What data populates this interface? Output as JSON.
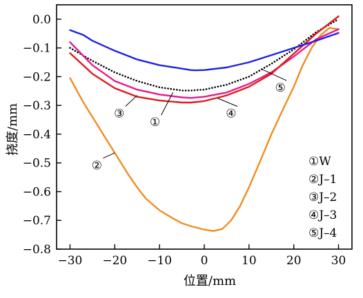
{
  "chart_data": {
    "type": "line",
    "xlabel": "位置/mm",
    "ylabel": "挠度/mm",
    "xlim": [
      -33,
      33
    ],
    "ylim": [
      -0.8,
      0.05
    ],
    "xticks": [
      -30,
      -20,
      -10,
      0,
      10,
      20,
      30
    ],
    "yticks": [
      0.0,
      -0.1,
      -0.2,
      -0.3,
      -0.4,
      -0.5,
      -0.6,
      -0.7,
      -0.8
    ],
    "xtick_labels": [
      "−30",
      "−20",
      "−10",
      "0",
      "10",
      "20",
      "30"
    ],
    "ytick_labels": [
      "0.0",
      "−0.1",
      "−0.2",
      "−0.3",
      "−0.4",
      "−0.5",
      "−0.6",
      "−0.7",
      "−0.8"
    ],
    "grid": false,
    "legend_position": "bottom-right",
    "series": [
      {
        "name": "W",
        "marker": "①",
        "color": "#000000",
        "style": "dotted",
        "x": [
          -30,
          -25,
          -20,
          -15,
          -10,
          -5,
          -3,
          0,
          5,
          10,
          15,
          20,
          25,
          30
        ],
        "y": [
          -0.1,
          -0.145,
          -0.185,
          -0.215,
          -0.237,
          -0.248,
          -0.248,
          -0.245,
          -0.228,
          -0.2,
          -0.155,
          -0.105,
          -0.045,
          0.0
        ]
      },
      {
        "name": "J–1",
        "marker": "②",
        "color": "#f08c1e",
        "style": "solid",
        "x": [
          -30,
          -27,
          -25,
          -22,
          -20,
          -17,
          -15,
          -13,
          -10,
          -7,
          -5,
          -3,
          0,
          2,
          4,
          6,
          8,
          10,
          13,
          15,
          18,
          20,
          22,
          24,
          26,
          28,
          30
        ],
        "y": [
          -0.205,
          -0.29,
          -0.34,
          -0.415,
          -0.465,
          -0.54,
          -0.585,
          -0.625,
          -0.665,
          -0.693,
          -0.71,
          -0.72,
          -0.732,
          -0.737,
          -0.73,
          -0.7,
          -0.65,
          -0.585,
          -0.475,
          -0.4,
          -0.3,
          -0.235,
          -0.16,
          -0.1,
          -0.055,
          -0.03,
          -0.035
        ]
      },
      {
        "name": "J–2",
        "marker": "③",
        "color": "#e6198c",
        "style": "solid",
        "x": [
          -30,
          -25,
          -20,
          -15,
          -10,
          -5,
          -3,
          0,
          5,
          10,
          15,
          20,
          25,
          30
        ],
        "y": [
          -0.08,
          -0.16,
          -0.215,
          -0.245,
          -0.262,
          -0.272,
          -0.274,
          -0.27,
          -0.255,
          -0.225,
          -0.185,
          -0.13,
          -0.07,
          -0.035
        ]
      },
      {
        "name": "J–3",
        "marker": "④",
        "color": "#e11919",
        "style": "solid",
        "x": [
          -30,
          -25,
          -20,
          -15,
          -10,
          -5,
          -3,
          0,
          5,
          10,
          15,
          20,
          25,
          30
        ],
        "y": [
          -0.118,
          -0.19,
          -0.24,
          -0.27,
          -0.283,
          -0.29,
          -0.29,
          -0.285,
          -0.265,
          -0.235,
          -0.19,
          -0.12,
          -0.05,
          0.01
        ]
      },
      {
        "name": "J–4",
        "marker": "⑤",
        "color": "#1e1ee6",
        "style": "solid",
        "x": [
          -30,
          -27,
          -25,
          -20,
          -15,
          -10,
          -5,
          -3,
          -2,
          0,
          5,
          10,
          15,
          20,
          25,
          30
        ],
        "y": [
          -0.038,
          -0.055,
          -0.075,
          -0.11,
          -0.14,
          -0.16,
          -0.172,
          -0.177,
          -0.178,
          -0.177,
          -0.168,
          -0.15,
          -0.125,
          -0.1,
          -0.075,
          -0.048
        ]
      }
    ],
    "annotations": [
      {
        "text": "①",
        "x": -11,
        "y": -0.355,
        "leader_to": [
          -7,
          -0.255
        ]
      },
      {
        "text": "②",
        "x": -24,
        "y": -0.505,
        "leader_to": [
          -20,
          -0.465
        ]
      },
      {
        "text": "③",
        "x": -19,
        "y": -0.325,
        "leader_to": [
          -15,
          -0.265
        ]
      },
      {
        "text": "④",
        "x": 6,
        "y": -0.325,
        "leader_to": [
          3,
          -0.275
        ]
      },
      {
        "text": "⑤",
        "x": 17,
        "y": -0.235,
        "leader_to": [
          13,
          -0.175
        ]
      }
    ]
  }
}
